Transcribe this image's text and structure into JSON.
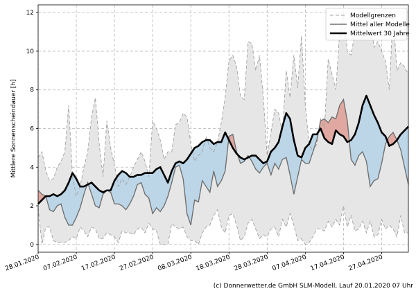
{
  "chart_data": {
    "type": "line",
    "title": "",
    "xlabel": "",
    "ylabel": "Mittlere Sonnenscheindauer [h]",
    "ylim": [
      -0.4,
      12.4
    ],
    "yticks": [
      0,
      2,
      4,
      6,
      8,
      10,
      12
    ],
    "grid": true,
    "legend_position": "top-right",
    "x_tick_labels": [
      "28.01.2020",
      "07.02.2020",
      "17.02.2020",
      "27.02.2020",
      "08.03.2020",
      "18.03.2020",
      "28.03.2020",
      "07.04.2020",
      "17.04.2020",
      "27.04.2020"
    ],
    "x": [
      "2020-01-28",
      "2020-01-29",
      "2020-01-30",
      "2020-01-31",
      "2020-02-01",
      "2020-02-02",
      "2020-02-03",
      "2020-02-04",
      "2020-02-05",
      "2020-02-06",
      "2020-02-07",
      "2020-02-08",
      "2020-02-09",
      "2020-02-10",
      "2020-02-11",
      "2020-02-12",
      "2020-02-13",
      "2020-02-14",
      "2020-02-15",
      "2020-02-16",
      "2020-02-17",
      "2020-02-18",
      "2020-02-19",
      "2020-02-20",
      "2020-02-21",
      "2020-02-22",
      "2020-02-23",
      "2020-02-24",
      "2020-02-25",
      "2020-02-26",
      "2020-02-27",
      "2020-02-28",
      "2020-02-29",
      "2020-03-01",
      "2020-03-02",
      "2020-03-03",
      "2020-03-04",
      "2020-03-05",
      "2020-03-06",
      "2020-03-07",
      "2020-03-08",
      "2020-03-09",
      "2020-03-10",
      "2020-03-11",
      "2020-03-12",
      "2020-03-13",
      "2020-03-14",
      "2020-03-15",
      "2020-03-16",
      "2020-03-17",
      "2020-03-18",
      "2020-03-19",
      "2020-03-20",
      "2020-03-21",
      "2020-03-22",
      "2020-03-23",
      "2020-03-24",
      "2020-03-25",
      "2020-03-26",
      "2020-03-27",
      "2020-03-28",
      "2020-03-29",
      "2020-03-30",
      "2020-03-31",
      "2020-04-01",
      "2020-04-02",
      "2020-04-03",
      "2020-04-04",
      "2020-04-05",
      "2020-04-06",
      "2020-04-07",
      "2020-04-08",
      "2020-04-09",
      "2020-04-10",
      "2020-04-11",
      "2020-04-12",
      "2020-04-13",
      "2020-04-14",
      "2020-04-15",
      "2020-04-16",
      "2020-04-17",
      "2020-04-18",
      "2020-04-19",
      "2020-04-20",
      "2020-04-21",
      "2020-04-22",
      "2020-04-23",
      "2020-04-24",
      "2020-04-25",
      "2020-04-26",
      "2020-04-27",
      "2020-04-28",
      "2020-04-29",
      "2020-04-30",
      "2020-05-01",
      "2020-05-02",
      "2020-05-03",
      "2020-05-04"
    ],
    "series": [
      {
        "name": "Modellgrenzen",
        "role": "upper",
        "color": "#a0a0a0",
        "values": [
          4.5,
          4.8,
          3.8,
          3.3,
          3.4,
          4.0,
          4.3,
          4.8,
          7.2,
          3.5,
          2.5,
          3.0,
          4.0,
          4.8,
          6.6,
          7.6,
          5.2,
          3.5,
          6.4,
          5.0,
          4.1,
          3.0,
          3.4,
          3.1,
          3.5,
          4.0,
          4.4,
          4.8,
          4.3,
          3.5,
          6.4,
          6.0,
          5.4,
          4.4,
          4.8,
          4.8,
          6.2,
          6.3,
          6.8,
          6.6,
          5.2,
          4.3,
          4.6,
          4.8,
          5.6,
          5.0,
          4.8,
          5.3,
          6.3,
          7.6,
          9.5,
          9.8,
          9.2,
          7.7,
          7.5,
          10.5,
          10.4,
          9.0,
          9.8,
          7.6,
          4.6,
          5.8,
          7.0,
          6.8,
          5.8,
          9.0,
          7.6,
          9.8,
          8.1,
          10.8,
          7.2,
          5.2,
          4.8,
          5.2,
          6.5,
          6.0,
          9.6,
          8.8,
          8.0,
          11.0,
          12.0,
          10.0,
          9.8,
          11.0,
          12.2,
          12.2,
          11.9,
          11.8,
          10.2,
          10.5,
          10.0,
          9.5,
          8.0,
          12.0,
          9.0,
          9.4,
          9.2,
          8.8
        ]
      },
      {
        "name": "",
        "role": "lower",
        "color": "#a0a0a0",
        "values": [
          1.9,
          0.0,
          0.9,
          0.9,
          0.2,
          0.1,
          0.1,
          0.1,
          0.2,
          0.4,
          0.3,
          0.9,
          0.7,
          0.4,
          0.9,
          0.8,
          0.3,
          0.3,
          0.6,
          0.5,
          0.4,
          0.1,
          0.7,
          0.6,
          0.6,
          0.5,
          0.8,
          0.9,
          0.6,
          1.1,
          0.8,
          0.7,
          0.0,
          0.0,
          0.0,
          1.1,
          0.9,
          0.8,
          0.9,
          0.4,
          0.2,
          0.2,
          0.0,
          0.6,
          0.9,
          1.0,
          1.5,
          1.8,
          0.9,
          0.6,
          1.5,
          1.6,
          1.0,
          0.2,
          0.4,
          1.1,
          1.3,
          0.8,
          0.3,
          0.5,
          0.4,
          0.8,
          0.9,
          0.4,
          1.3,
          0.9,
          1.6,
          1.0,
          0.2,
          0.3,
          0.0,
          0.1,
          0.4,
          0.8,
          0.8,
          0.7,
          1.2,
          0.9,
          1.3,
          1.0,
          2.0,
          0.9,
          1.5,
          0.7,
          0.8,
          1.2,
          0.6,
          1.2,
          0.4,
          0.5,
          1.3,
          0.8,
          1.0,
          0.8,
          0.4,
          1.5,
          0.6,
          0.6
        ]
      },
      {
        "name": "Mittel aller Modelle",
        "role": "model_mean",
        "color": "#707070",
        "values": [
          2.8,
          2.6,
          2.5,
          1.8,
          1.7,
          2.0,
          2.1,
          1.4,
          1.0,
          1.0,
          1.4,
          1.9,
          2.6,
          3.2,
          2.6,
          2.0,
          1.9,
          2.6,
          2.8,
          2.7,
          2.1,
          2.1,
          2.0,
          1.8,
          2.1,
          2.5,
          3.1,
          3.2,
          2.6,
          2.4,
          1.6,
          1.9,
          1.7,
          2.0,
          2.5,
          3.2,
          4.0,
          4.1,
          3.4,
          1.6,
          1.0,
          2.3,
          2.2,
          3.3,
          3.0,
          2.7,
          3.8,
          3.0,
          3.3,
          3.8,
          5.6,
          5.7,
          4.8,
          4.2,
          4.3,
          4.6,
          4.3,
          3.9,
          3.7,
          4.0,
          4.2,
          3.6,
          4.2,
          3.9,
          4.4,
          4.5,
          3.6,
          2.6,
          3.5,
          4.4,
          4.2,
          4.2,
          4.8,
          5.4,
          6.4,
          6.5,
          6.3,
          6.6,
          6.5,
          7.2,
          7.5,
          6.4,
          4.4,
          4.1,
          4.6,
          4.8,
          4.3,
          3.0,
          3.3,
          3.4,
          4.2,
          5.2,
          5.6,
          5.8,
          5.4,
          4.9,
          4.0,
          3.1
        ]
      },
      {
        "name": "Mittelwert 30 Jahre",
        "role": "climate_mean",
        "color": "#000000",
        "values": [
          2.1,
          2.3,
          2.5,
          2.5,
          2.6,
          2.5,
          2.6,
          2.8,
          3.2,
          3.7,
          3.4,
          3.0,
          3.0,
          3.1,
          3.2,
          3.0,
          2.8,
          2.7,
          2.8,
          2.8,
          3.3,
          3.6,
          3.8,
          3.7,
          3.5,
          3.5,
          3.6,
          3.6,
          3.7,
          3.7,
          3.7,
          3.9,
          4.0,
          3.6,
          3.2,
          3.8,
          4.2,
          4.3,
          4.2,
          4.4,
          4.7,
          5.0,
          5.1,
          5.3,
          5.4,
          5.4,
          5.2,
          5.3,
          5.3,
          5.8,
          5.4,
          5.0,
          4.7,
          4.5,
          4.4,
          4.5,
          4.6,
          4.6,
          4.4,
          4.2,
          4.3,
          4.8,
          5.0,
          5.3,
          6.1,
          6.8,
          6.5,
          5.4,
          4.6,
          4.5,
          5.0,
          5.2,
          5.7,
          5.7,
          6.0,
          5.5,
          5.3,
          5.2,
          5.9,
          5.7,
          5.6,
          5.3,
          5.4,
          5.7,
          6.3,
          7.2,
          7.7,
          7.2,
          6.7,
          6.3,
          5.8,
          5.6,
          5.1,
          5.2,
          5.4,
          5.7,
          5.9,
          6.1
        ]
      }
    ],
    "fill_colors": {
      "range": "#e6e6e6",
      "below_mean": "#bcd6e8",
      "below_mean_light": "#dff0f7",
      "above_mean": "#e0a8a0"
    }
  },
  "copyright": "(c) Donnerwetter.de GmbH SLM-Modell, Lauf 20.01.2020 07 Uhr"
}
